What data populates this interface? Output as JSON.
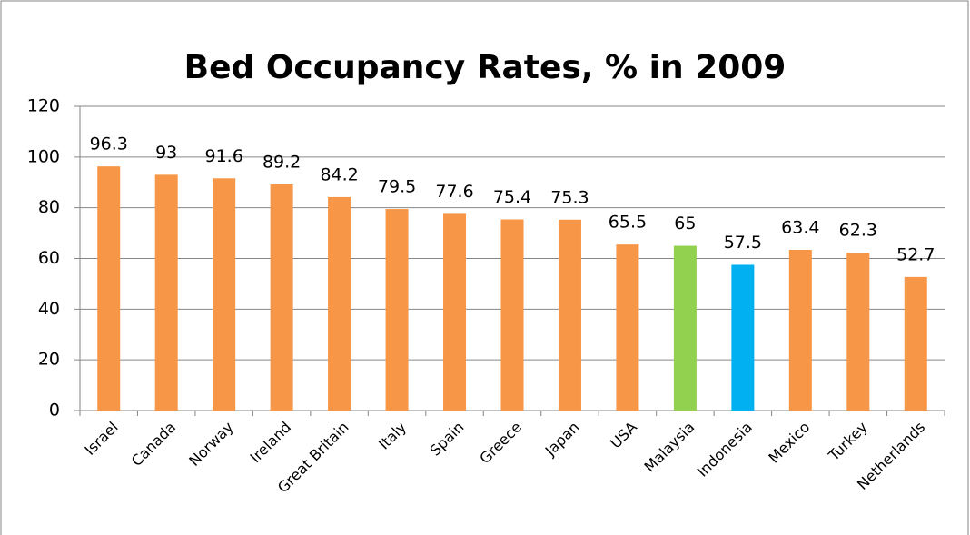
{
  "chart_data": {
    "type": "bar",
    "title": "Bed Occupancy Rates, % in 2009",
    "categories": [
      "Israel",
      "Canada",
      "Norway",
      "Ireland",
      "Great Britain",
      "Italy",
      "Spain",
      "Greece",
      "Japan",
      "USA",
      "Malaysia",
      "Indonesia",
      "Mexico",
      "Turkey",
      "Netherlands"
    ],
    "values": [
      96.3,
      93,
      91.6,
      89.2,
      84.2,
      79.5,
      77.6,
      75.4,
      75.3,
      65.5,
      65,
      57.5,
      63.4,
      62.3,
      52.7
    ],
    "colors": [
      "#f79646",
      "#f79646",
      "#f79646",
      "#f79646",
      "#f79646",
      "#f79646",
      "#f79646",
      "#f79646",
      "#f79646",
      "#f79646",
      "#92d050",
      "#00b0f0",
      "#f79646",
      "#f79646",
      "#f79646"
    ],
    "ylim": [
      0,
      120
    ],
    "yticks": [
      0,
      20,
      40,
      60,
      80,
      100,
      120
    ],
    "grid": true
  }
}
